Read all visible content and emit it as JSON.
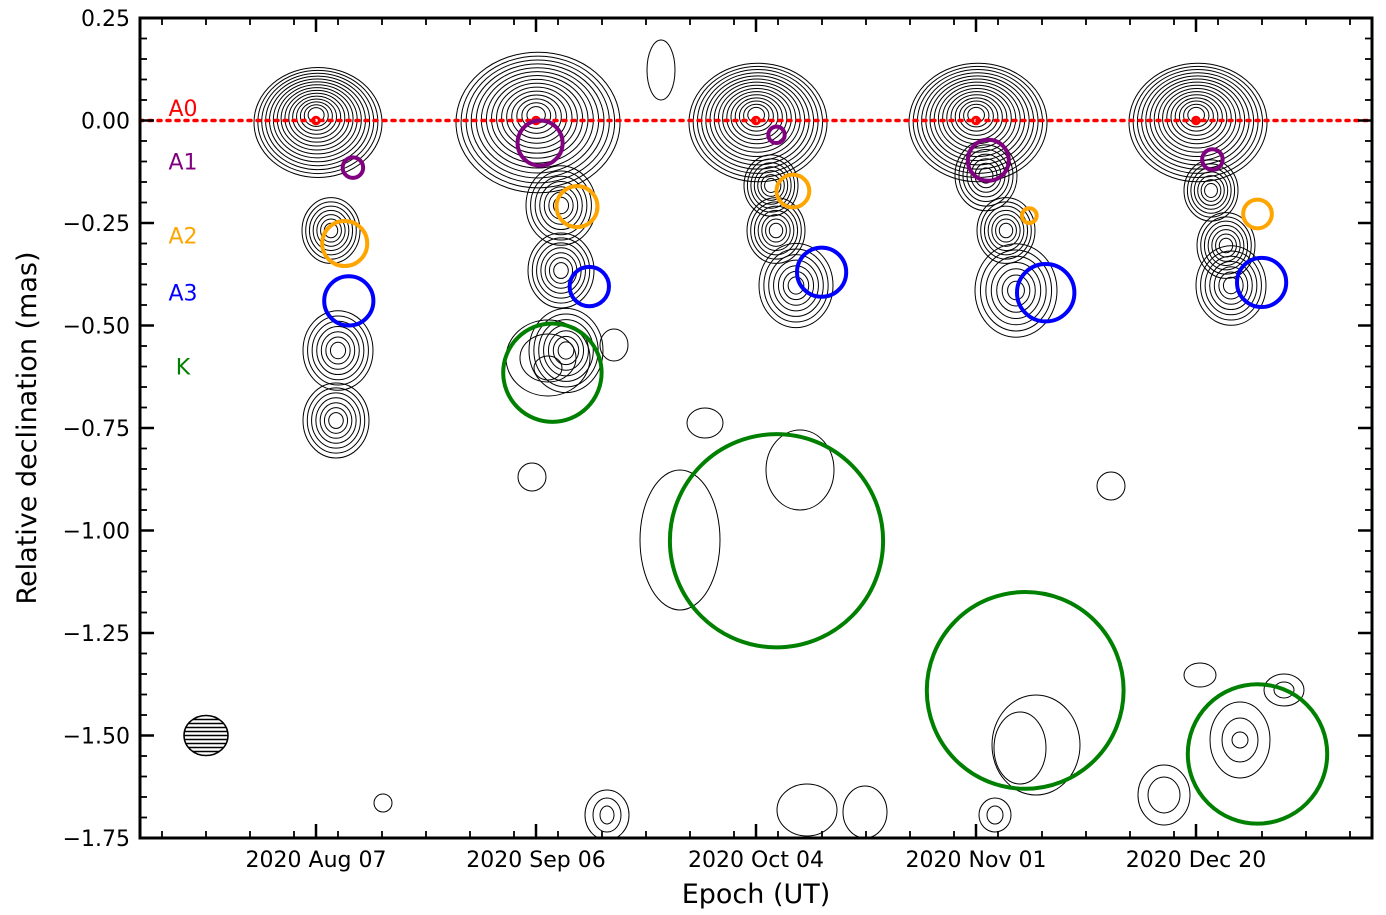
{
  "chart_data": {
    "type": "contour",
    "title": "",
    "xlabel": "Epoch (UT)",
    "ylabel": "Relative declination (mas)",
    "ylim": [
      -1.75,
      0.25
    ],
    "yticks": [
      "0.25",
      "0.00",
      "−0.25",
      "−0.50",
      "−0.75",
      "−1.00",
      "−1.25",
      "−1.50",
      "−1.75"
    ],
    "yticks_values": [
      0.25,
      0.0,
      -0.25,
      -0.5,
      -0.75,
      -1.0,
      -1.25,
      -1.5,
      -1.75
    ],
    "epochs": [
      "2020 Aug 07",
      "2020 Sep 06",
      "2020 Oct 04",
      "2020 Nov 01",
      "2020 Dec 20"
    ],
    "reference_line": {
      "label": "A0",
      "y": 0.0,
      "color": "#ff0000",
      "style": "dotted"
    },
    "component_labels": [
      {
        "name": "A0",
        "color": "#ff0000",
        "y": 0.03
      },
      {
        "name": "A1",
        "color": "#800080",
        "y": -0.1
      },
      {
        "name": "A2",
        "color": "#ffa500",
        "y": -0.28
      },
      {
        "name": "A3",
        "color": "#0000ff",
        "y": -0.42
      },
      {
        "name": "K",
        "color": "#008000",
        "y": -0.6
      }
    ],
    "components": [
      {
        "epoch": 0,
        "name": "A0",
        "dx": 0.0,
        "y": 0.0,
        "r": 0.008
      },
      {
        "epoch": 0,
        "name": "A1",
        "dx": 0.09,
        "y": -0.115,
        "r": 0.025
      },
      {
        "epoch": 0,
        "name": "A2",
        "dx": 0.07,
        "y": -0.3,
        "r": 0.055
      },
      {
        "epoch": 0,
        "name": "A3",
        "dx": 0.08,
        "y": -0.44,
        "r": 0.06
      },
      {
        "epoch": 0,
        "name": "K",
        "dx": 0.0,
        "y": 0.0,
        "r": 0.0,
        "hidden": true
      },
      {
        "epoch": 1,
        "name": "A0",
        "dx": 0.0,
        "y": 0.0,
        "r": 0.008
      },
      {
        "epoch": 1,
        "name": "A1",
        "dx": 0.01,
        "y": -0.055,
        "r": 0.055
      },
      {
        "epoch": 1,
        "name": "A2",
        "dx": 0.1,
        "y": -0.21,
        "r": 0.05
      },
      {
        "epoch": 1,
        "name": "A3",
        "dx": 0.13,
        "y": -0.405,
        "r": 0.048
      },
      {
        "epoch": 1,
        "name": "K",
        "dx": 0.04,
        "y": -0.615,
        "r": 0.12
      },
      {
        "epoch": 2,
        "name": "A0",
        "dx": 0.0,
        "y": 0.0,
        "r": 0.008
      },
      {
        "epoch": 2,
        "name": "A1",
        "dx": 0.05,
        "y": -0.035,
        "r": 0.02
      },
      {
        "epoch": 2,
        "name": "A2",
        "dx": 0.09,
        "y": -0.172,
        "r": 0.04
      },
      {
        "epoch": 2,
        "name": "A3",
        "dx": 0.16,
        "y": -0.37,
        "r": 0.06
      },
      {
        "epoch": 2,
        "name": "K",
        "dx": 0.05,
        "y": -1.025,
        "r": 0.26
      },
      {
        "epoch": 3,
        "name": "A0",
        "dx": 0.0,
        "y": 0.0,
        "r": 0.008
      },
      {
        "epoch": 3,
        "name": "A1",
        "dx": 0.03,
        "y": -0.097,
        "r": 0.05
      },
      {
        "epoch": 3,
        "name": "A2",
        "dx": 0.13,
        "y": -0.232,
        "r": 0.018
      },
      {
        "epoch": 3,
        "name": "A3",
        "dx": 0.17,
        "y": -0.42,
        "r": 0.07
      },
      {
        "epoch": 3,
        "name": "K",
        "dx": 0.12,
        "y": -1.39,
        "r": 0.24
      },
      {
        "epoch": 4,
        "name": "A0",
        "dx": 0.0,
        "y": 0.0,
        "r": 0.008
      },
      {
        "epoch": 4,
        "name": "A1",
        "dx": 0.04,
        "y": -0.095,
        "r": 0.025
      },
      {
        "epoch": 4,
        "name": "A2",
        "dx": 0.15,
        "y": -0.228,
        "r": 0.035
      },
      {
        "epoch": 4,
        "name": "A3",
        "dx": 0.16,
        "y": -0.395,
        "r": 0.06
      },
      {
        "epoch": 4,
        "name": "K",
        "dx": 0.15,
        "y": -1.545,
        "r": 0.17
      }
    ],
    "contour_levels": 15,
    "beam": {
      "y": -1.5,
      "pattern": "horizontal-hatch"
    },
    "grid": false,
    "legend": "none"
  },
  "colors": {
    "A0": "#ff0000",
    "A1": "#800080",
    "A2": "#ffa500",
    "A3": "#0000ff",
    "K": "#008000",
    "contour": "#000000"
  }
}
